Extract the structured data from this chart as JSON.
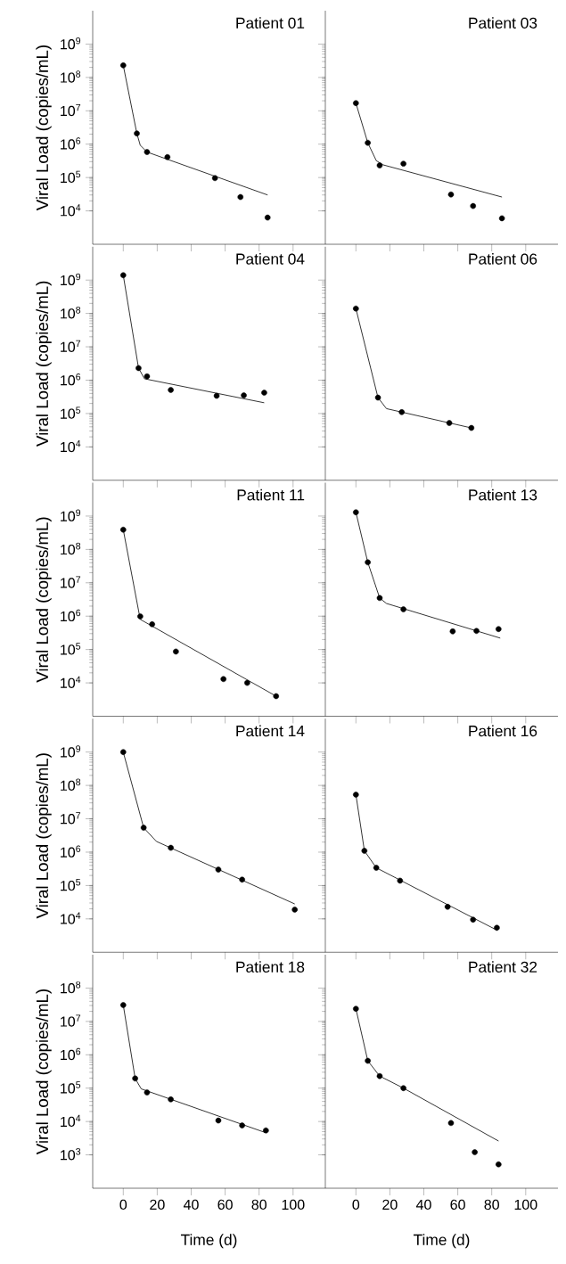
{
  "chart_data": [
    {
      "type": "scatter",
      "title": "Patient 01",
      "ylabel": "Viral Load (copies/mL)",
      "xlim": [
        -18,
        119
      ],
      "ylim": [
        1000.0,
        10000000000.0
      ],
      "xticks": [
        0,
        20,
        40,
        60,
        80,
        100
      ],
      "yticks": [
        {
          "value": 10000.0,
          "label": "10$^{4}$"
        },
        {
          "value": 100000.0,
          "label": "10$^{5}$"
        },
        {
          "value": 1000000.0,
          "label": "10$^{6}$"
        },
        {
          "value": 10000000.0,
          "label": "10$^{7}$"
        },
        {
          "value": 100000000.0,
          "label": "10$^{8}$"
        },
        {
          "value": 1000000000.0,
          "label": "10$^{9}$"
        }
      ],
      "log": "y",
      "tick_labels": "y",
      "series": [
        {
          "type": "scatter",
          "marker": "circle",
          "color": "#000000",
          "x": [
            0,
            8,
            14,
            26,
            54,
            69,
            85
          ],
          "values": [
            230000000.0,
            2100000.0,
            580000.0,
            410000.0,
            96000.0,
            26000.0,
            6300.0
          ]
        },
        {
          "type": "line",
          "marker": "none",
          "color": "#000000",
          "x": [
            0,
            8,
            10,
            14,
            85
          ],
          "values": [
            230000000.0,
            2100000.0,
            930000.0,
            580000.0,
            30000.0
          ]
        }
      ]
    },
    {
      "type": "scatter",
      "title": "Patient 03",
      "xlim": [
        -18,
        119
      ],
      "ylim": [
        1000.0,
        10000000000.0
      ],
      "xticks": [
        0,
        20,
        40,
        60,
        80,
        100
      ],
      "yticks": [
        {
          "value": 10000.0,
          "label": null
        },
        {
          "value": 100000.0,
          "label": null
        },
        {
          "value": 1000000.0,
          "label": null
        },
        {
          "value": 10000000.0,
          "label": null
        },
        {
          "value": 100000000.0,
          "label": null
        },
        {
          "value": 1000000000.0,
          "label": null
        }
      ],
      "log": "y",
      "tick_labels": false,
      "series": [
        {
          "type": "scatter",
          "marker": "circle",
          "color": "#000000",
          "x": [
            0,
            7,
            14,
            28,
            56,
            69,
            86
          ],
          "values": [
            17000000.0,
            1100000.0,
            230000.0,
            260000.0,
            31000.0,
            14000.0,
            6000.0
          ]
        },
        {
          "type": "line",
          "marker": "none",
          "color": "#000000",
          "x": [
            0,
            7,
            12,
            16,
            86
          ],
          "values": [
            17000000.0,
            1100000.0,
            320000.0,
            240000.0,
            26000.0
          ]
        }
      ]
    },
    {
      "type": "scatter",
      "title": "Patient 04",
      "ylabel": "Viral Load (copies/mL)",
      "xlim": [
        -18,
        119
      ],
      "ylim": [
        1000.0,
        10000000000.0
      ],
      "xticks": [
        0,
        20,
        40,
        60,
        80,
        100
      ],
      "yticks": [
        {
          "value": 10000.0,
          "label": "10$^{4}$"
        },
        {
          "value": 100000.0,
          "label": "10$^{5}$"
        },
        {
          "value": 1000000.0,
          "label": "10$^{6}$"
        },
        {
          "value": 10000000.0,
          "label": "10$^{7}$"
        },
        {
          "value": 100000000.0,
          "label": "10$^{8}$"
        },
        {
          "value": 1000000000.0,
          "label": "10$^{9}$"
        }
      ],
      "log": "y",
      "tick_labels": "y",
      "series": [
        {
          "type": "scatter",
          "marker": "circle",
          "color": "#000000",
          "x": [
            0,
            9,
            14,
            28,
            55,
            71,
            83
          ],
          "values": [
            1400000000.0,
            2300000.0,
            1300000.0,
            510000.0,
            340000.0,
            350000.0,
            420000.0
          ]
        },
        {
          "type": "line",
          "marker": "none",
          "color": "#000000",
          "x": [
            0,
            9,
            12.5,
            83
          ],
          "values": [
            1400000000.0,
            2300000.0,
            1100000.0,
            210000.0
          ]
        }
      ]
    },
    {
      "type": "scatter",
      "title": "Patient 06",
      "xlim": [
        -18,
        119
      ],
      "ylim": [
        1000.0,
        10000000000.0
      ],
      "xticks": [
        0,
        20,
        40,
        60,
        80,
        100
      ],
      "yticks": [
        {
          "value": 10000.0,
          "label": null
        },
        {
          "value": 100000.0,
          "label": null
        },
        {
          "value": 1000000.0,
          "label": null
        },
        {
          "value": 10000000.0,
          "label": null
        },
        {
          "value": 100000000.0,
          "label": null
        },
        {
          "value": 1000000000.0,
          "label": null
        }
      ],
      "log": "y",
      "tick_labels": false,
      "series": [
        {
          "type": "scatter",
          "marker": "circle",
          "color": "#000000",
          "x": [
            0,
            13,
            27,
            55,
            68
          ],
          "values": [
            140000000.0,
            300000.0,
            110000.0,
            52000.0,
            37000.0
          ]
        },
        {
          "type": "line",
          "marker": "none",
          "color": "#000000",
          "x": [
            0,
            13,
            18,
            68
          ],
          "values": [
            140000000.0,
            300000.0,
            140000.0,
            37000.0
          ]
        }
      ]
    },
    {
      "type": "scatter",
      "title": "Patient 11",
      "ylabel": "Viral Load (copies/mL)",
      "xlim": [
        -18,
        119
      ],
      "ylim": [
        1000.0,
        10000000000.0
      ],
      "xticks": [
        0,
        20,
        40,
        60,
        80,
        100
      ],
      "yticks": [
        {
          "value": 10000.0,
          "label": "10$^{4}$"
        },
        {
          "value": 100000.0,
          "label": "10$^{5}$"
        },
        {
          "value": 1000000.0,
          "label": "10$^{6}$"
        },
        {
          "value": 10000000.0,
          "label": "10$^{7}$"
        },
        {
          "value": 100000000.0,
          "label": "10$^{8}$"
        },
        {
          "value": 1000000000.0,
          "label": "10$^{9}$"
        }
      ],
      "log": "y",
      "tick_labels": "y",
      "series": [
        {
          "type": "scatter",
          "marker": "circle",
          "color": "#000000",
          "x": [
            0,
            10,
            17,
            31,
            59,
            73,
            90
          ],
          "values": [
            390000000.0,
            980000.0,
            570000.0,
            87000.0,
            13000.0,
            10000.0,
            4000.0
          ]
        },
        {
          "type": "line",
          "marker": "none",
          "color": "#000000",
          "x": [
            0,
            10,
            90
          ],
          "values": [
            390000000.0,
            800000.0,
            4000.0
          ]
        }
      ]
    },
    {
      "type": "scatter",
      "title": "Patient 13",
      "xlim": [
        -18,
        119
      ],
      "ylim": [
        1000.0,
        10000000000.0
      ],
      "xticks": [
        0,
        20,
        40,
        60,
        80,
        100
      ],
      "yticks": [
        {
          "value": 10000.0,
          "label": null
        },
        {
          "value": 100000.0,
          "label": null
        },
        {
          "value": 1000000.0,
          "label": null
        },
        {
          "value": 10000000.0,
          "label": null
        },
        {
          "value": 100000000.0,
          "label": null
        },
        {
          "value": 1000000000.0,
          "label": null
        }
      ],
      "log": "y",
      "tick_labels": false,
      "series": [
        {
          "type": "scatter",
          "marker": "circle",
          "color": "#000000",
          "x": [
            0,
            7,
            14,
            28,
            57,
            71,
            84
          ],
          "values": [
            1300000000.0,
            41000000.0,
            3500000.0,
            1600000.0,
            350000.0,
            360000.0,
            410000.0
          ]
        },
        {
          "type": "line",
          "marker": "none",
          "color": "#000000",
          "x": [
            0,
            7,
            14,
            18,
            85
          ],
          "values": [
            1300000000.0,
            41000000.0,
            3500000.0,
            2400000.0,
            220000.0
          ]
        }
      ]
    },
    {
      "type": "scatter",
      "title": "Patient 14",
      "ylabel": "Viral Load (copies/mL)",
      "xlim": [
        -18,
        119
      ],
      "ylim": [
        1000.0,
        10000000000.0
      ],
      "xticks": [
        0,
        20,
        40,
        60,
        80,
        100
      ],
      "yticks": [
        {
          "value": 10000.0,
          "label": "10$^{4}$"
        },
        {
          "value": 100000.0,
          "label": "10$^{5}$"
        },
        {
          "value": 1000000.0,
          "label": "10$^{6}$"
        },
        {
          "value": 10000000.0,
          "label": "10$^{7}$"
        },
        {
          "value": 100000000.0,
          "label": "10$^{8}$"
        },
        {
          "value": 1000000000.0,
          "label": "10$^{9}$"
        }
      ],
      "log": "y",
      "tick_labels": "y",
      "series": [
        {
          "type": "scatter",
          "marker": "circle",
          "color": "#000000",
          "x": [
            0,
            12,
            28,
            56,
            70,
            101
          ],
          "values": [
            1000000000.0,
            5400000.0,
            1350000.0,
            300000.0,
            150000.0,
            19000.0
          ]
        },
        {
          "type": "line",
          "marker": "none",
          "color": "#000000",
          "x": [
            0,
            12,
            19.5,
            101
          ],
          "values": [
            1000000000.0,
            5400000.0,
            2100000.0,
            28000.0
          ]
        }
      ]
    },
    {
      "type": "scatter",
      "title": "Patient 16",
      "xlim": [
        -18,
        119
      ],
      "ylim": [
        1000.0,
        10000000000.0
      ],
      "xticks": [
        0,
        20,
        40,
        60,
        80,
        100
      ],
      "yticks": [
        {
          "value": 10000.0,
          "label": null
        },
        {
          "value": 100000.0,
          "label": null
        },
        {
          "value": 1000000.0,
          "label": null
        },
        {
          "value": 10000000.0,
          "label": null
        },
        {
          "value": 100000000.0,
          "label": null
        },
        {
          "value": 1000000000.0,
          "label": null
        }
      ],
      "log": "y",
      "tick_labels": false,
      "series": [
        {
          "type": "scatter",
          "marker": "circle",
          "color": "#000000",
          "x": [
            0,
            5,
            12,
            26,
            54,
            69,
            83
          ],
          "values": [
            53000000.0,
            1100000.0,
            340000.0,
            140000.0,
            23000.0,
            9500.0,
            5400.0
          ]
        },
        {
          "type": "line",
          "marker": "none",
          "color": "#000000",
          "x": [
            0,
            5,
            12,
            83
          ],
          "values": [
            53000000.0,
            1100000.0,
            340000.0,
            4600.0
          ]
        }
      ]
    },
    {
      "type": "scatter",
      "title": "Patient 18",
      "ylabel": "Viral Load (copies/mL)",
      "xlabel": "Time (d)",
      "xlim": [
        -18,
        119
      ],
      "ylim": [
        100.0,
        1000000000.0
      ],
      "xticks": [
        0,
        20,
        40,
        60,
        80,
        100
      ],
      "yticks": [
        {
          "value": 1000.0,
          "label": "10$^{3}$"
        },
        {
          "value": 10000.0,
          "label": "10$^{4}$"
        },
        {
          "value": 100000.0,
          "label": "10$^{5}$"
        },
        {
          "value": 1000000.0,
          "label": "10$^{6}$"
        },
        {
          "value": 10000000.0,
          "label": "10$^{7}$"
        },
        {
          "value": 100000000.0,
          "label": "10$^{8}$"
        }
      ],
      "log": "y",
      "series": [
        {
          "type": "scatter",
          "marker": "circle",
          "color": "#000000",
          "x": [
            0,
            7,
            14,
            28,
            56,
            70,
            84
          ],
          "values": [
            31000000.0,
            195000.0,
            74000.0,
            46000.0,
            10700.0,
            7600.0,
            5400.0
          ]
        },
        {
          "type": "line",
          "marker": "none",
          "color": "#000000",
          "x": [
            0,
            7,
            10.6,
            84
          ],
          "values": [
            31000000.0,
            195000.0,
            95000.0,
            4600.0
          ]
        }
      ]
    },
    {
      "type": "scatter",
      "title": "Patient 32",
      "xlabel": "Time (d)",
      "xlim": [
        -18,
        119
      ],
      "ylim": [
        100.0,
        1000000000.0
      ],
      "xticks": [
        0,
        20,
        40,
        60,
        80,
        100
      ],
      "yticks": [
        {
          "value": 1000.0,
          "label": null
        },
        {
          "value": 10000.0,
          "label": null
        },
        {
          "value": 100000.0,
          "label": null
        },
        {
          "value": 1000000.0,
          "label": null
        },
        {
          "value": 10000000.0,
          "label": null
        },
        {
          "value": 100000000.0,
          "label": null
        }
      ],
      "log": "y",
      "tick_labels": "x",
      "series": [
        {
          "type": "scatter",
          "marker": "circle",
          "color": "#000000",
          "x": [
            0,
            7,
            14,
            28,
            56,
            70,
            84
          ],
          "values": [
            24000000.0,
            660000.0,
            230000.0,
            100000.0,
            9000.0,
            1200.0,
            520.0
          ]
        },
        {
          "type": "line",
          "marker": "none",
          "color": "#000000",
          "x": [
            0,
            7,
            14,
            28,
            84
          ],
          "values": [
            24000000.0,
            660000.0,
            230000.0,
            100000.0,
            2600.0
          ]
        }
      ]
    }
  ]
}
